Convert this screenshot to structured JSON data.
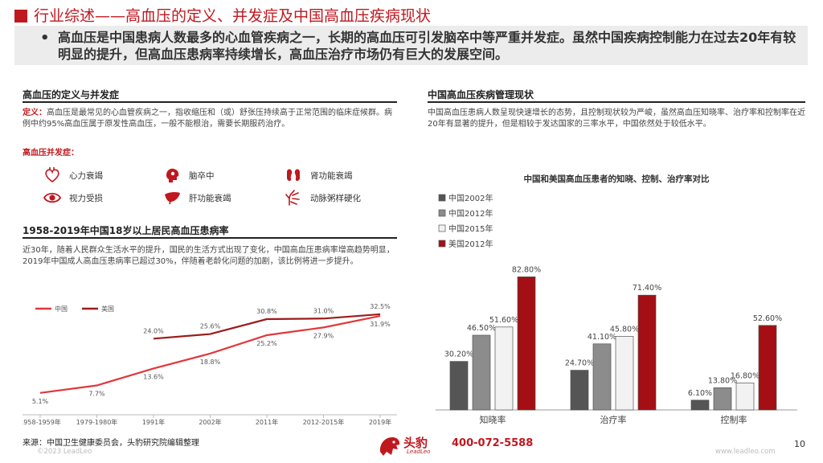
{
  "header": {
    "title": "行业综述——高血压的定义、并发症及中国高血压疾病现状",
    "summary": "高血压是中国患病人数最多的心血管疾病之一，长期的高血压可引发脑卒中等严重并发症。虽然中国疾病控制能力在过去20年有较明显的提升，但高血压患病率持续增长，高血压治疗市场仍有巨大的发展空间。"
  },
  "definition": {
    "heading": "高血压的定义与并发症",
    "def_label": "定义：",
    "def_text": "高血压是最常见的心血管疾病之一，指收缩压和（或）舒张压持续高于正常范围的临床症候群。病例中约95%高血压属于原发性高血压，一般不能根治，需要长期服药治疗。",
    "comp_heading": "高血压并发症：",
    "complications": [
      "心力衰竭",
      "脑卒中",
      "肾功能衰竭",
      "视力受损",
      "肝功能衰竭",
      "动脉粥样硬化"
    ],
    "icons": [
      "heart-icon",
      "brain-icon",
      "kidney-icon",
      "eye-icon",
      "liver-icon",
      "artery-icon"
    ]
  },
  "prevalence": {
    "heading": "1958-2019年中国18岁以上居民高血压患病率",
    "text": "近30年，随着人民群众生活水平的提升，国民的生活方式出现了变化，中国高血压患病率增高趋势明显，2019年中国成人高血压患病率已超过30%，伴随着老龄化问题的加剧，该比例将进一步提升。"
  },
  "management": {
    "heading": "中国高血压疾病管理现状",
    "text": "中国高血压患病人数呈现快速增长的态势，且控制现状较为严峻，虽然高血压知晓率、治疗率和控制率在近20年有显著的提升，但是相较于发达国家的三率水平，中国依然处于较低水平。"
  },
  "chart_data": [
    {
      "type": "line",
      "title": "",
      "categories": [
        "1958-1959年",
        "1979-1980年",
        "1991年",
        "2002年",
        "2011年",
        "2012-2015年",
        "2019年"
      ],
      "series": [
        {
          "name": "中国",
          "values": [
            5.1,
            7.7,
            13.6,
            18.8,
            25.2,
            27.9,
            31.9
          ],
          "labels": [
            "5.1%",
            "7.7%",
            "13.6%",
            "18.8%",
            "25.2%",
            "27.9%",
            "31.9%"
          ],
          "color": "#e0383d"
        },
        {
          "name": "美国",
          "values": [
            null,
            null,
            24.0,
            25.6,
            30.8,
            31.0,
            32.5
          ],
          "labels": [
            "",
            "",
            "24.0%",
            "25.6%",
            "30.8%",
            "31.0%",
            "32.5%"
          ],
          "color": "#9c1b1b"
        }
      ],
      "ylim": [
        0,
        35
      ],
      "legend": "top-left",
      "grid": false
    },
    {
      "type": "bar",
      "title": "中国和美国高血压患者的知晓、控制、治疗率对比",
      "categories": [
        "知晓率",
        "治疗率",
        "控制率"
      ],
      "series": [
        {
          "name": "中国2002年",
          "values": [
            30.2,
            24.7,
            6.1
          ],
          "labels": [
            "30.20%",
            "24.70%",
            "6.10%"
          ],
          "color": "#555555"
        },
        {
          "name": "中国2012年",
          "values": [
            46.5,
            41.1,
            13.8
          ],
          "labels": [
            "46.50%",
            "41.10%",
            "13.80%"
          ],
          "color": "#8c8c8c"
        },
        {
          "name": "中国2015年",
          "values": [
            51.6,
            45.8,
            16.8
          ],
          "labels": [
            "51.60%",
            "45.80%",
            "16.80%"
          ],
          "color": "#f2f2f2"
        },
        {
          "name": "美国2012年",
          "values": [
            82.8,
            71.4,
            52.6
          ],
          "labels": [
            "82.80%",
            "71.40%",
            "52.60%"
          ],
          "color": "#a30f14"
        }
      ],
      "ylim": [
        0,
        100
      ],
      "legend": "top-left",
      "grid": false
    }
  ],
  "footer": {
    "source": "来源：中国卫生健康委员会，头豹研究院编辑整理",
    "copyright": "©2023 LeadLeo",
    "brand_cn": "头豹",
    "brand_en": "LeadLeo",
    "phone": "400-072-5588",
    "site": "www.leadleo.com",
    "page": "10"
  },
  "colors": {
    "accent": "#c0181f"
  }
}
